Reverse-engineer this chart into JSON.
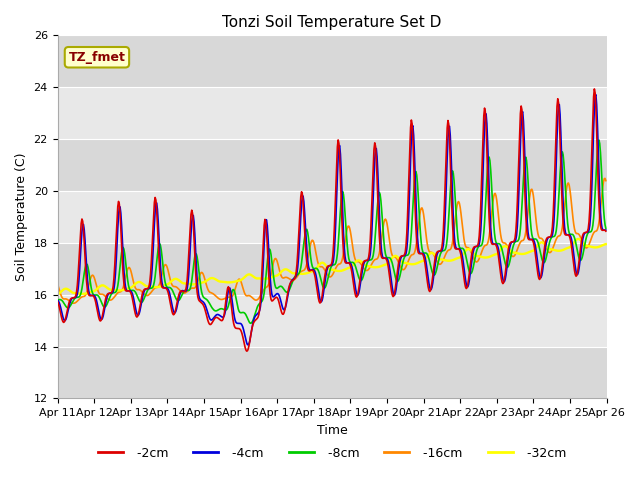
{
  "title": "Tonzi Soil Temperature Set D",
  "xlabel": "Time",
  "ylabel": "Soil Temperature (C)",
  "ylim": [
    12,
    26
  ],
  "xlim": [
    0,
    15
  ],
  "tick_labels": [
    "Apr 11",
    "Apr 12",
    "Apr 13",
    "Apr 14",
    "Apr 15",
    "Apr 16",
    "Apr 17",
    "Apr 18",
    "Apr 19",
    "Apr 20",
    "Apr 21",
    "Apr 22",
    "Apr 23",
    "Apr 24",
    "Apr 25",
    "Apr 26"
  ],
  "annotation": "TZ_fmet",
  "annotation_color": "#880000",
  "annotation_bg": "#ffffcc",
  "annotation_border": "#aaaa00",
  "colors": {
    "-2cm": "#dd0000",
    "-4cm": "#0000dd",
    "-8cm": "#00cc00",
    "-16cm": "#ff8800",
    "-32cm": "#ffff00"
  },
  "bg_bands": [
    [
      12,
      14,
      "#d8d8d8"
    ],
    [
      14,
      16,
      "#e8e8e8"
    ],
    [
      16,
      18,
      "#d8d8d8"
    ],
    [
      18,
      20,
      "#e8e8e8"
    ],
    [
      20,
      22,
      "#d8d8d8"
    ],
    [
      22,
      24,
      "#e8e8e8"
    ],
    [
      24,
      26,
      "#d8d8d8"
    ]
  ],
  "plot_bg": "#e0e0e0"
}
